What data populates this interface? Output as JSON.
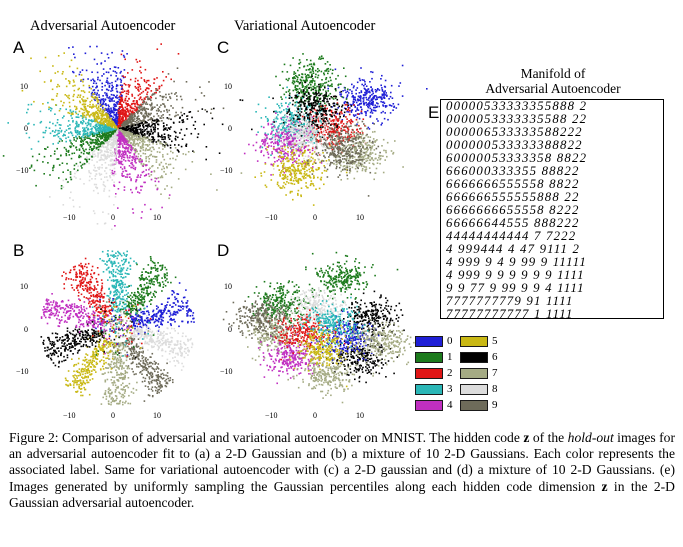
{
  "figure": {
    "titles": {
      "adversarial": "Adversarial Autoencoder",
      "variational": "Variational Autoencoder",
      "manifold_line1": "Manifold of",
      "manifold_line2": "Adversarial Autoencoder"
    },
    "panel_labels": {
      "a": "A",
      "b": "B",
      "c": "C",
      "d": "D",
      "e": "E"
    },
    "ticks": {
      "y_top": "10",
      "y_mid": "0",
      "y_bot": "−10",
      "x_left": "−10",
      "x_mid": "0",
      "x_right": "10"
    },
    "legend": [
      {
        "label": "0",
        "color": "#1f1fd6"
      },
      {
        "label": "1",
        "color": "#1c7a1c"
      },
      {
        "label": "2",
        "color": "#e01616"
      },
      {
        "label": "3",
        "color": "#2bb7b7"
      },
      {
        "label": "4",
        "color": "#c02fc0"
      },
      {
        "label": "5",
        "color": "#c9b814"
      },
      {
        "label": "6",
        "color": "#000000"
      },
      {
        "label": "7",
        "color": "#a5ab84"
      },
      {
        "label": "8",
        "color": "#dcdcdc"
      },
      {
        "label": "9",
        "color": "#6e6b5a"
      }
    ],
    "manifold_rows": [
      "00000533333355888 2",
      "0000053333335588 22",
      "000006533333588222",
      "000000533333388822",
      "60000053333358 8822",
      "666000333355 88822",
      "6666666555558 8822",
      "666666555555888 22",
      "6666666655558 8222",
      "66666644555 888222",
      "44444444444 7 7222",
      "4 999444 4 47 9111 2",
      "4 999 9 4 9 99 9 11111",
      "4 999 9 9 9 9 9 9 1111",
      "9 9 77 9 99 9 9 4 1111",
      "7777777779 91 1111",
      "77777777777 1 1111"
    ],
    "caption": {
      "figure_label": "Figure 2:",
      "p1": " Comparison of adversarial and variational autoencoder on MNIST. The hidden code ",
      "z1": "z",
      "p2": " of the ",
      "holdout": "hold-out",
      "p3": " images for an adversarial autoencoder fit to (a) a 2-D Gaussian and (b) a mixture of 10 2-D Gaussians. Each color represents the associated label. Same for variational autoencoder with (c) a 2-D gaussian and (d) a mixture of 10 2-D Gaussians. (e) Images generated by uniformly sampling the Gaussian percentiles along each hidden code dimension ",
      "z2": "z",
      "p4": " in the 2-D Gaussian adversarial autoencoder."
    }
  }
}
